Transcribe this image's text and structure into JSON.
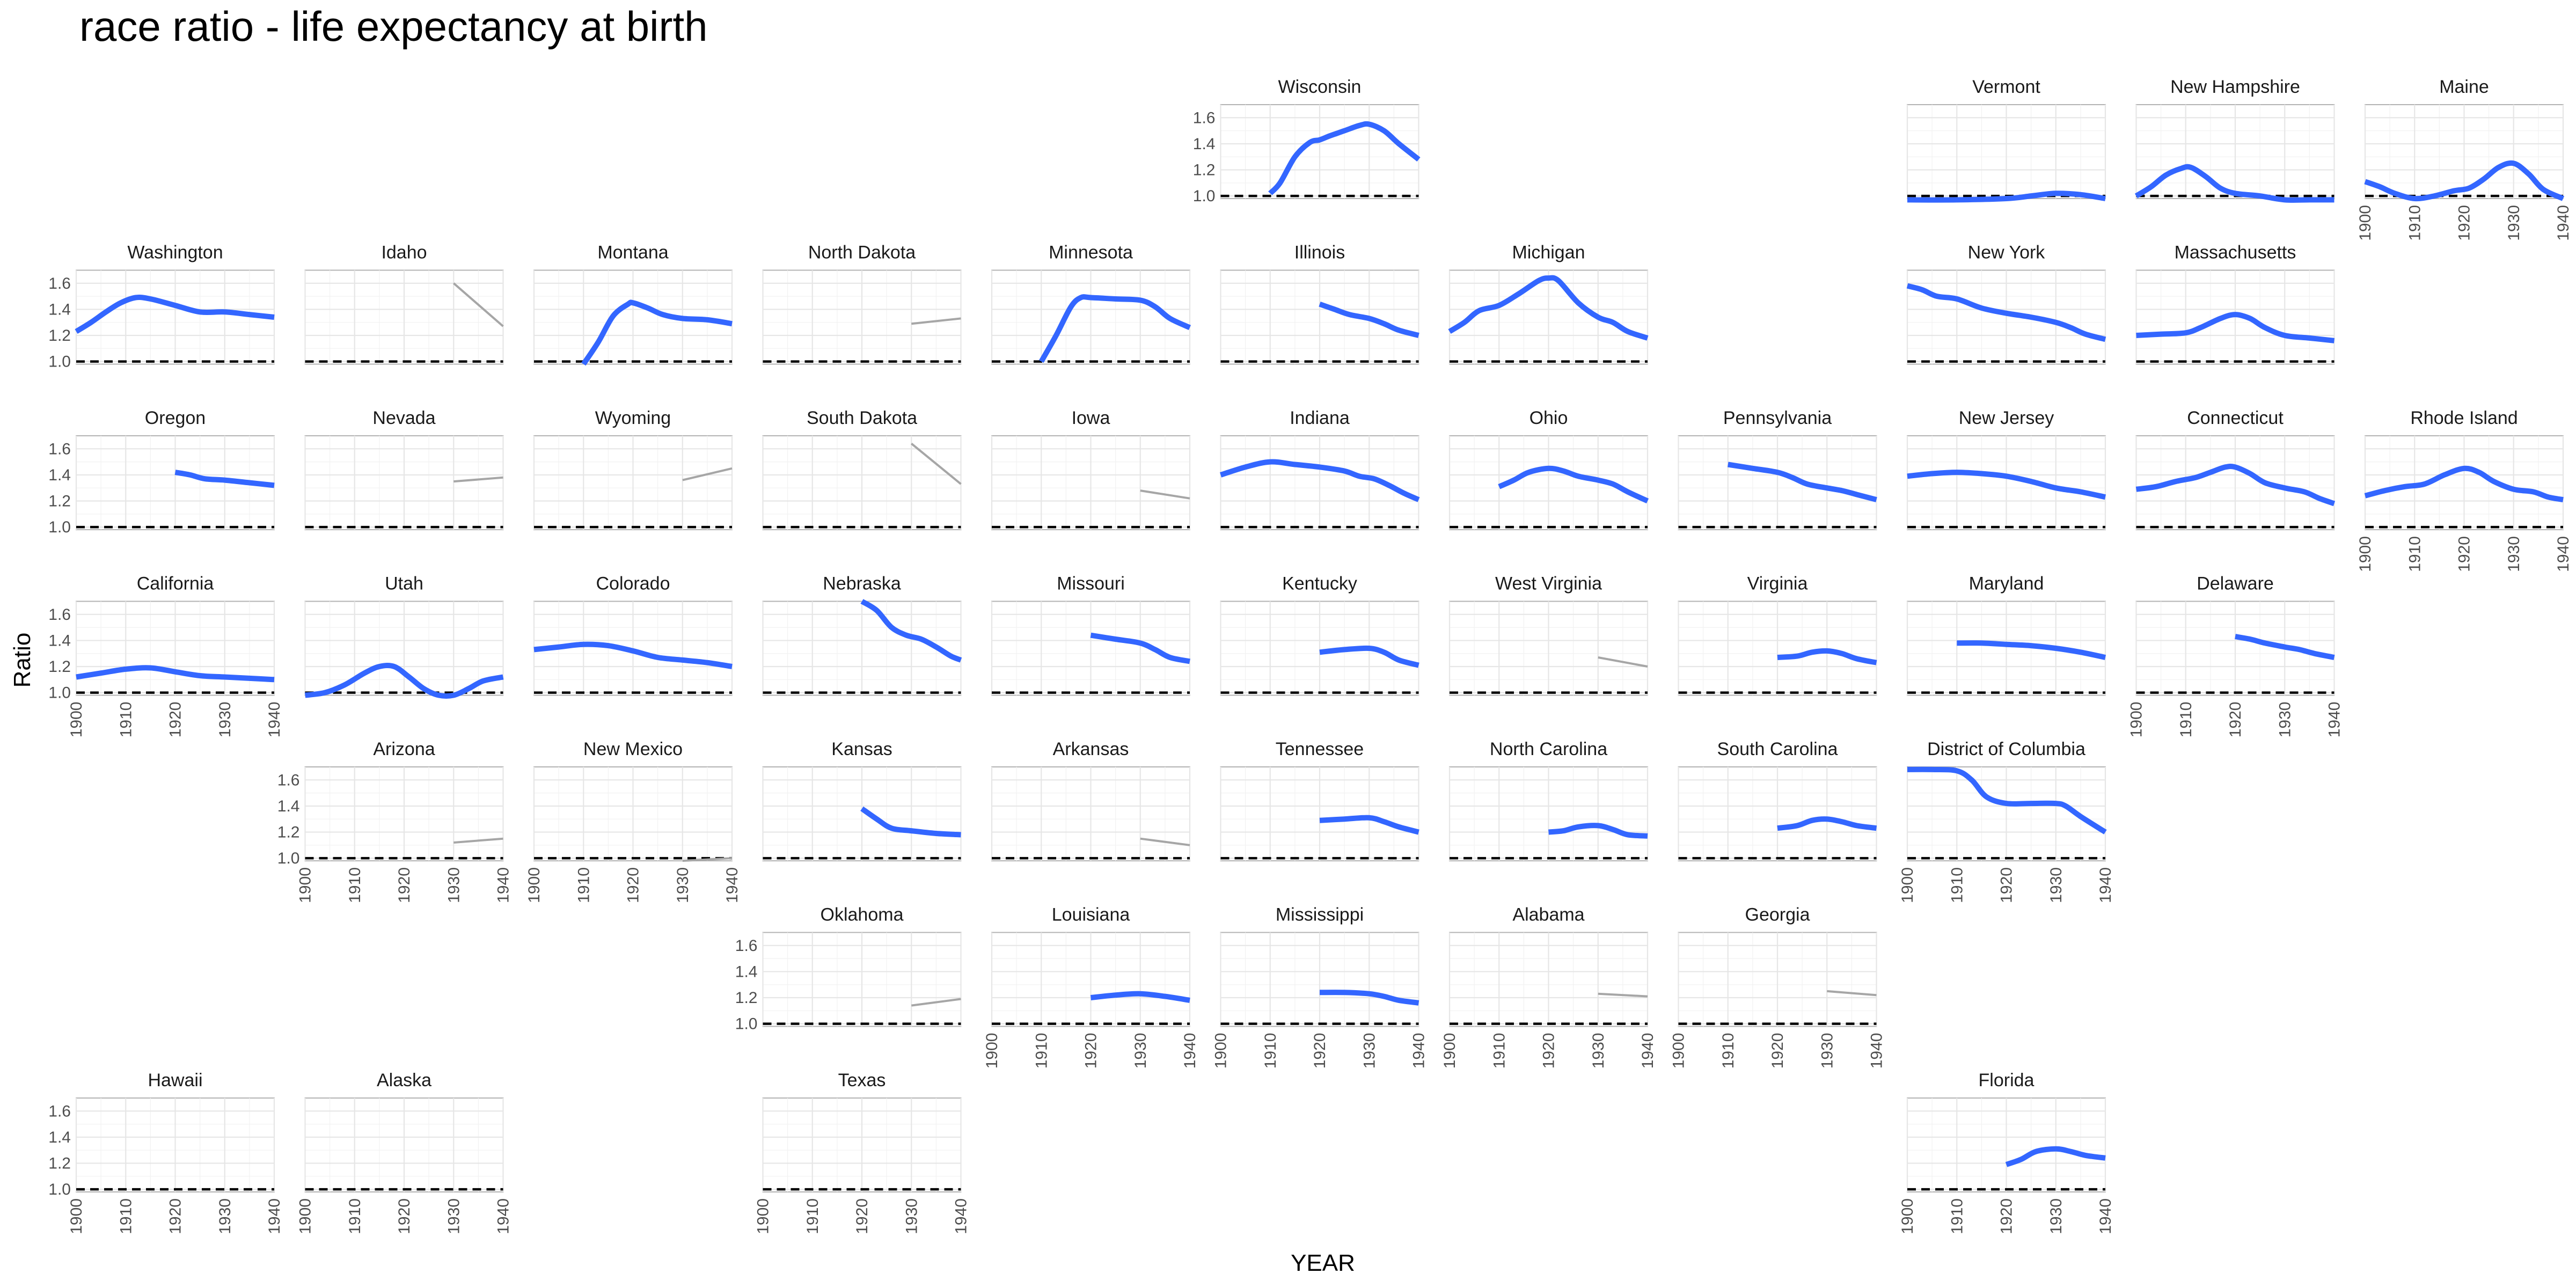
{
  "chart_data": {
    "type": "line",
    "title": "race ratio - life expectancy at birth",
    "xlabel": "YEAR",
    "ylabel": "Ratio",
    "xlim": [
      1900,
      1940
    ],
    "ylim": [
      0.98,
      1.7
    ],
    "x_ticks": [
      1900,
      1910,
      1920,
      1930,
      1940
    ],
    "y_ticks": [
      1.0,
      1.2,
      1.4,
      1.6
    ],
    "x_tick_labels": [
      "1900",
      "1910",
      "1920",
      "1930",
      "1940"
    ],
    "y_tick_labels": [
      "1.0",
      "1.2",
      "1.4",
      "1.6"
    ],
    "reference_line": 1.0,
    "colors": {
      "smooth": "#3366ff",
      "sparse": "#a6a6a6",
      "reference": "#000000"
    },
    "panels": [
      {
        "state": "Wisconsin",
        "row": 0,
        "col": 5,
        "style": "smooth",
        "x": [
          1910,
          1912,
          1915,
          1918,
          1920,
          1922,
          1925,
          1928,
          1930,
          1933,
          1936,
          1940
        ],
        "y": [
          1.02,
          1.1,
          1.3,
          1.41,
          1.43,
          1.46,
          1.5,
          1.54,
          1.55,
          1.5,
          1.4,
          1.28
        ]
      },
      {
        "state": "Vermont",
        "row": 0,
        "col": 8,
        "style": "smooth",
        "x": [
          1900,
          1910,
          1920,
          1925,
          1930,
          1935,
          1940
        ],
        "y": [
          0.97,
          0.97,
          0.98,
          1.0,
          1.02,
          1.01,
          0.98
        ]
      },
      {
        "state": "New Hampshire",
        "row": 0,
        "col": 9,
        "style": "smooth",
        "x": [
          1900,
          1903,
          1906,
          1909,
          1911,
          1914,
          1917,
          1920,
          1925,
          1930,
          1935,
          1940
        ],
        "y": [
          1.0,
          1.07,
          1.16,
          1.21,
          1.22,
          1.15,
          1.06,
          1.02,
          1.0,
          0.97,
          0.97,
          0.97
        ]
      },
      {
        "state": "Maine",
        "row": 0,
        "col": 10,
        "style": "smooth",
        "x": [
          1900,
          1903,
          1906,
          1910,
          1914,
          1918,
          1921,
          1924,
          1927,
          1930,
          1933,
          1936,
          1940
        ],
        "y": [
          1.11,
          1.07,
          1.02,
          0.98,
          1.0,
          1.04,
          1.06,
          1.13,
          1.22,
          1.25,
          1.17,
          1.05,
          0.98
        ]
      },
      {
        "state": "Washington",
        "row": 1,
        "col": 0,
        "style": "smooth",
        "x": [
          1900,
          1903,
          1906,
          1909,
          1912,
          1915,
          1920,
          1925,
          1930,
          1935,
          1940
        ],
        "y": [
          1.23,
          1.3,
          1.38,
          1.45,
          1.49,
          1.48,
          1.43,
          1.38,
          1.38,
          1.36,
          1.34
        ]
      },
      {
        "state": "Idaho",
        "row": 1,
        "col": 1,
        "style": "sparse",
        "x": [
          1930,
          1940
        ],
        "y": [
          1.6,
          1.27
        ]
      },
      {
        "state": "Montana",
        "row": 1,
        "col": 2,
        "style": "smooth",
        "x": [
          1910,
          1913,
          1916,
          1919,
          1920,
          1923,
          1926,
          1930,
          1935,
          1940
        ],
        "y": [
          0.98,
          1.15,
          1.35,
          1.44,
          1.45,
          1.41,
          1.36,
          1.33,
          1.32,
          1.29
        ]
      },
      {
        "state": "North Dakota",
        "row": 1,
        "col": 3,
        "style": "sparse",
        "x": [
          1930,
          1940
        ],
        "y": [
          1.29,
          1.33
        ]
      },
      {
        "state": "Minnesota",
        "row": 1,
        "col": 4,
        "style": "smooth",
        "x": [
          1910,
          1913,
          1916,
          1918,
          1920,
          1925,
          1930,
          1933,
          1936,
          1940
        ],
        "y": [
          1.0,
          1.2,
          1.42,
          1.49,
          1.49,
          1.48,
          1.47,
          1.42,
          1.33,
          1.26
        ]
      },
      {
        "state": "Illinois",
        "row": 1,
        "col": 5,
        "style": "smooth",
        "x": [
          1920,
          1923,
          1926,
          1930,
          1933,
          1936,
          1940
        ],
        "y": [
          1.44,
          1.4,
          1.36,
          1.33,
          1.29,
          1.24,
          1.2
        ]
      },
      {
        "state": "Michigan",
        "row": 1,
        "col": 6,
        "style": "smooth",
        "x": [
          1900,
          1903,
          1906,
          1910,
          1914,
          1918,
          1920,
          1922,
          1926,
          1930,
          1933,
          1936,
          1940
        ],
        "y": [
          1.23,
          1.3,
          1.39,
          1.43,
          1.52,
          1.62,
          1.64,
          1.62,
          1.45,
          1.34,
          1.3,
          1.23,
          1.18
        ]
      },
      {
        "state": "New York",
        "row": 1,
        "col": 8,
        "style": "smooth",
        "x": [
          1900,
          1903,
          1906,
          1910,
          1915,
          1920,
          1925,
          1930,
          1933,
          1936,
          1940
        ],
        "y": [
          1.58,
          1.55,
          1.5,
          1.48,
          1.41,
          1.37,
          1.34,
          1.3,
          1.26,
          1.21,
          1.17
        ]
      },
      {
        "state": "Massachusetts",
        "row": 1,
        "col": 9,
        "style": "smooth",
        "x": [
          1900,
          1905,
          1910,
          1913,
          1917,
          1920,
          1923,
          1926,
          1930,
          1935,
          1940
        ],
        "y": [
          1.2,
          1.21,
          1.22,
          1.26,
          1.33,
          1.36,
          1.33,
          1.26,
          1.2,
          1.18,
          1.16
        ]
      },
      {
        "state": "Oregon",
        "row": 2,
        "col": 0,
        "style": "smooth",
        "x": [
          1920,
          1923,
          1926,
          1930,
          1935,
          1940
        ],
        "y": [
          1.42,
          1.4,
          1.37,
          1.36,
          1.34,
          1.32
        ]
      },
      {
        "state": "Nevada",
        "row": 2,
        "col": 1,
        "style": "sparse",
        "x": [
          1930,
          1940
        ],
        "y": [
          1.35,
          1.38
        ]
      },
      {
        "state": "Wyoming",
        "row": 2,
        "col": 2,
        "style": "sparse",
        "x": [
          1930,
          1940
        ],
        "y": [
          1.36,
          1.45
        ]
      },
      {
        "state": "South Dakota",
        "row": 2,
        "col": 3,
        "style": "sparse",
        "x": [
          1930,
          1940
        ],
        "y": [
          1.64,
          1.33
        ]
      },
      {
        "state": "Iowa",
        "row": 2,
        "col": 4,
        "style": "sparse",
        "x": [
          1930,
          1940
        ],
        "y": [
          1.28,
          1.22
        ]
      },
      {
        "state": "Indiana",
        "row": 2,
        "col": 5,
        "style": "smooth",
        "x": [
          1900,
          1905,
          1910,
          1915,
          1920,
          1925,
          1928,
          1931,
          1934,
          1937,
          1940
        ],
        "y": [
          1.4,
          1.46,
          1.5,
          1.48,
          1.46,
          1.43,
          1.39,
          1.37,
          1.32,
          1.26,
          1.21
        ]
      },
      {
        "state": "Ohio",
        "row": 2,
        "col": 6,
        "style": "smooth",
        "x": [
          1910,
          1913,
          1916,
          1920,
          1923,
          1926,
          1930,
          1933,
          1936,
          1940
        ],
        "y": [
          1.31,
          1.36,
          1.42,
          1.45,
          1.43,
          1.39,
          1.36,
          1.33,
          1.27,
          1.2
        ]
      },
      {
        "state": "Pennsylvania",
        "row": 2,
        "col": 7,
        "style": "smooth",
        "x": [
          1910,
          1915,
          1920,
          1923,
          1926,
          1930,
          1933,
          1936,
          1940
        ],
        "y": [
          1.48,
          1.45,
          1.42,
          1.38,
          1.33,
          1.3,
          1.28,
          1.25,
          1.21
        ]
      },
      {
        "state": "New Jersey",
        "row": 2,
        "col": 8,
        "style": "smooth",
        "x": [
          1900,
          1905,
          1910,
          1915,
          1920,
          1925,
          1930,
          1935,
          1940
        ],
        "y": [
          1.39,
          1.41,
          1.42,
          1.41,
          1.39,
          1.35,
          1.3,
          1.27,
          1.23
        ]
      },
      {
        "state": "Connecticut",
        "row": 2,
        "col": 9,
        "style": "smooth",
        "x": [
          1900,
          1904,
          1908,
          1912,
          1915,
          1918,
          1920,
          1923,
          1926,
          1930,
          1934,
          1937,
          1940
        ],
        "y": [
          1.29,
          1.31,
          1.35,
          1.38,
          1.42,
          1.46,
          1.46,
          1.41,
          1.34,
          1.3,
          1.27,
          1.22,
          1.18
        ]
      },
      {
        "state": "Rhode Island",
        "row": 2,
        "col": 10,
        "style": "smooth",
        "x": [
          1900,
          1904,
          1908,
          1912,
          1916,
          1920,
          1923,
          1926,
          1930,
          1934,
          1937,
          1940
        ],
        "y": [
          1.24,
          1.28,
          1.31,
          1.33,
          1.4,
          1.45,
          1.42,
          1.35,
          1.29,
          1.27,
          1.23,
          1.21
        ]
      },
      {
        "state": "California",
        "row": 3,
        "col": 0,
        "style": "smooth",
        "x": [
          1900,
          1905,
          1910,
          1915,
          1920,
          1925,
          1930,
          1935,
          1940
        ],
        "y": [
          1.12,
          1.15,
          1.18,
          1.19,
          1.16,
          1.13,
          1.12,
          1.11,
          1.1
        ]
      },
      {
        "state": "Utah",
        "row": 3,
        "col": 1,
        "style": "smooth",
        "x": [
          1900,
          1904,
          1908,
          1912,
          1915,
          1918,
          1921,
          1924,
          1927,
          1930,
          1933,
          1936,
          1940
        ],
        "y": [
          0.98,
          1.0,
          1.06,
          1.15,
          1.2,
          1.2,
          1.12,
          1.03,
          0.98,
          0.98,
          1.03,
          1.09,
          1.12
        ]
      },
      {
        "state": "Colorado",
        "row": 3,
        "col": 2,
        "style": "smooth",
        "x": [
          1900,
          1905,
          1910,
          1915,
          1920,
          1925,
          1930,
          1935,
          1940
        ],
        "y": [
          1.33,
          1.35,
          1.37,
          1.36,
          1.32,
          1.27,
          1.25,
          1.23,
          1.2
        ]
      },
      {
        "state": "Nebraska",
        "row": 3,
        "col": 3,
        "style": "smooth",
        "x": [
          1920,
          1923,
          1926,
          1929,
          1932,
          1935,
          1938,
          1940
        ],
        "y": [
          1.7,
          1.63,
          1.5,
          1.44,
          1.41,
          1.35,
          1.28,
          1.25
        ]
      },
      {
        "state": "Missouri",
        "row": 3,
        "col": 4,
        "style": "smooth",
        "x": [
          1920,
          1925,
          1930,
          1933,
          1936,
          1940
        ],
        "y": [
          1.44,
          1.41,
          1.38,
          1.33,
          1.27,
          1.24
        ]
      },
      {
        "state": "Kentucky",
        "row": 3,
        "col": 5,
        "style": "smooth",
        "x": [
          1920,
          1925,
          1930,
          1933,
          1936,
          1940
        ],
        "y": [
          1.31,
          1.33,
          1.34,
          1.31,
          1.25,
          1.21
        ]
      },
      {
        "state": "West Virginia",
        "row": 3,
        "col": 6,
        "style": "sparse",
        "x": [
          1930,
          1940
        ],
        "y": [
          1.27,
          1.2
        ]
      },
      {
        "state": "Virginia",
        "row": 3,
        "col": 7,
        "style": "smooth",
        "x": [
          1920,
          1924,
          1927,
          1930,
          1933,
          1936,
          1940
        ],
        "y": [
          1.27,
          1.28,
          1.31,
          1.32,
          1.3,
          1.26,
          1.23
        ]
      },
      {
        "state": "Maryland",
        "row": 3,
        "col": 8,
        "style": "smooth",
        "x": [
          1910,
          1915,
          1920,
          1925,
          1930,
          1935,
          1940
        ],
        "y": [
          1.38,
          1.38,
          1.37,
          1.36,
          1.34,
          1.31,
          1.27
        ]
      },
      {
        "state": "Delaware",
        "row": 3,
        "col": 9,
        "style": "smooth",
        "x": [
          1920,
          1923,
          1926,
          1930,
          1933,
          1936,
          1940
        ],
        "y": [
          1.43,
          1.41,
          1.38,
          1.35,
          1.33,
          1.3,
          1.27
        ]
      },
      {
        "state": "Arizona",
        "row": 4,
        "col": 1,
        "style": "sparse",
        "x": [
          1930,
          1940
        ],
        "y": [
          1.12,
          1.15
        ]
      },
      {
        "state": "New Mexico",
        "row": 4,
        "col": 2,
        "style": "sparse",
        "x": [
          1930,
          1940
        ],
        "y": [
          0.98,
          1.0
        ]
      },
      {
        "state": "Kansas",
        "row": 4,
        "col": 3,
        "style": "smooth",
        "x": [
          1920,
          1923,
          1926,
          1930,
          1935,
          1940
        ],
        "y": [
          1.38,
          1.3,
          1.23,
          1.21,
          1.19,
          1.18
        ]
      },
      {
        "state": "Arkansas",
        "row": 4,
        "col": 4,
        "style": "sparse",
        "x": [
          1930,
          1940
        ],
        "y": [
          1.15,
          1.1
        ]
      },
      {
        "state": "Tennessee",
        "row": 4,
        "col": 5,
        "style": "smooth",
        "x": [
          1920,
          1925,
          1930,
          1933,
          1936,
          1940
        ],
        "y": [
          1.29,
          1.3,
          1.31,
          1.28,
          1.24,
          1.2
        ]
      },
      {
        "state": "North Carolina",
        "row": 4,
        "col": 6,
        "style": "smooth",
        "x": [
          1920,
          1923,
          1926,
          1930,
          1933,
          1936,
          1940
        ],
        "y": [
          1.2,
          1.21,
          1.24,
          1.25,
          1.22,
          1.18,
          1.17
        ]
      },
      {
        "state": "South Carolina",
        "row": 4,
        "col": 7,
        "style": "smooth",
        "x": [
          1920,
          1924,
          1927,
          1930,
          1933,
          1936,
          1940
        ],
        "y": [
          1.23,
          1.25,
          1.29,
          1.3,
          1.28,
          1.25,
          1.23
        ]
      },
      {
        "state": "District of Columbia",
        "row": 4,
        "col": 8,
        "style": "smooth",
        "x": [
          1900,
          1905,
          1910,
          1913,
          1916,
          1920,
          1925,
          1930,
          1932,
          1935,
          1940
        ],
        "y": [
          1.68,
          1.68,
          1.67,
          1.6,
          1.47,
          1.42,
          1.42,
          1.42,
          1.4,
          1.32,
          1.2
        ]
      },
      {
        "state": "Oklahoma",
        "row": 5,
        "col": 3,
        "style": "sparse",
        "x": [
          1930,
          1940
        ],
        "y": [
          1.14,
          1.19
        ]
      },
      {
        "state": "Louisiana",
        "row": 5,
        "col": 4,
        "style": "smooth",
        "x": [
          1920,
          1925,
          1930,
          1935,
          1940
        ],
        "y": [
          1.2,
          1.22,
          1.23,
          1.21,
          1.18
        ]
      },
      {
        "state": "Mississippi",
        "row": 5,
        "col": 5,
        "style": "smooth",
        "x": [
          1920,
          1925,
          1930,
          1933,
          1936,
          1940
        ],
        "y": [
          1.24,
          1.24,
          1.23,
          1.21,
          1.18,
          1.16
        ]
      },
      {
        "state": "Alabama",
        "row": 5,
        "col": 6,
        "style": "sparse",
        "x": [
          1930,
          1940
        ],
        "y": [
          1.23,
          1.21
        ]
      },
      {
        "state": "Georgia",
        "row": 5,
        "col": 7,
        "style": "sparse",
        "x": [
          1930,
          1940
        ],
        "y": [
          1.25,
          1.22
        ]
      },
      {
        "state": "Hawaii",
        "row": 6,
        "col": 0,
        "style": "none",
        "x": [],
        "y": []
      },
      {
        "state": "Alaska",
        "row": 6,
        "col": 1,
        "style": "none",
        "x": [],
        "y": []
      },
      {
        "state": "Texas",
        "row": 6,
        "col": 3,
        "style": "none",
        "x": [],
        "y": []
      },
      {
        "state": "Florida",
        "row": 6,
        "col": 8,
        "style": "smooth",
        "x": [
          1920,
          1923,
          1926,
          1930,
          1933,
          1936,
          1940
        ],
        "y": [
          1.19,
          1.23,
          1.29,
          1.31,
          1.29,
          1.26,
          1.24
        ]
      }
    ]
  }
}
